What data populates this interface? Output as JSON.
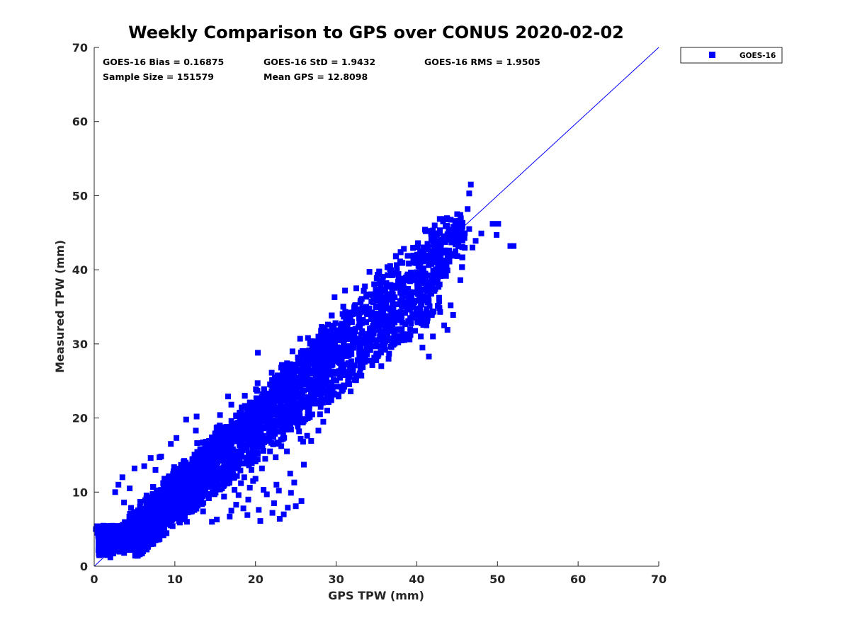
{
  "chart_data": {
    "type": "scatter",
    "title": "Weekly Comparison to GPS over CONUS 2020-02-02",
    "xlabel": "GPS TPW (mm)",
    "ylabel": "Measured TPW (mm)",
    "xlim": [
      0,
      70
    ],
    "ylim": [
      0,
      70
    ],
    "xticks": [
      "0",
      "10",
      "20",
      "30",
      "40",
      "50",
      "60",
      "70"
    ],
    "yticks": [
      "0",
      "10",
      "20",
      "30",
      "40",
      "50",
      "60",
      "70"
    ],
    "grid": false,
    "legend_position": "outside-top-right",
    "stats": {
      "bias": "GOES-16 Bias = 0.16875",
      "std": "GOES-16 StD = 1.9432",
      "rms": "GOES-16 RMS = 1.9505",
      "sample": "Sample Size = 151579",
      "mean": "Mean GPS = 12.8098"
    },
    "reference_line": {
      "from": [
        0,
        0
      ],
      "to": [
        70,
        70
      ]
    },
    "series": [
      {
        "name": "GOES-16",
        "color": "#0000ff",
        "marker": "square",
        "outliers": [
          [
            46.7,
            51.5
          ],
          [
            46.5,
            50.3
          ],
          [
            46.3,
            48.2
          ],
          [
            45.0,
            47.5
          ],
          [
            51.6,
            43.2
          ],
          [
            52.0,
            43.2
          ],
          [
            50.1,
            46.2
          ],
          [
            49.4,
            46.2
          ],
          [
            49.9,
            44.7
          ],
          [
            46.9,
            43.0
          ],
          [
            47.3,
            43.9
          ],
          [
            48.0,
            44.9
          ],
          [
            45.4,
            38.6
          ],
          [
            44.2,
            35.2
          ],
          [
            44.5,
            33.9
          ],
          [
            42.9,
            34.3
          ],
          [
            43.4,
            32.5
          ],
          [
            43.8,
            31.9
          ],
          [
            42.0,
            31.0
          ],
          [
            41.2,
            32.5
          ],
          [
            40.5,
            31.0
          ],
          [
            40.7,
            29.5
          ],
          [
            41.5,
            28.3
          ],
          [
            36.5,
            28.0
          ],
          [
            34.2,
            34.1
          ],
          [
            33.8,
            29.5
          ],
          [
            30.9,
            26.3
          ],
          [
            31.8,
            23.6
          ],
          [
            31.5,
            24.8
          ],
          [
            30.6,
            26.9
          ],
          [
            30.7,
            27.7
          ],
          [
            29.1,
            26.7
          ],
          [
            29.5,
            24.2
          ],
          [
            28.9,
            21.0
          ],
          [
            28.4,
            19.5
          ],
          [
            27.8,
            18.3
          ],
          [
            26.4,
            17.6
          ],
          [
            26.9,
            16.9
          ],
          [
            25.4,
            18.2
          ],
          [
            25.6,
            17.2
          ],
          [
            25.9,
            16.8
          ],
          [
            23.9,
            15.5
          ],
          [
            23.2,
            16.2
          ],
          [
            22.5,
            14.7
          ],
          [
            21.8,
            15.5
          ],
          [
            21.2,
            14.5
          ],
          [
            20.8,
            13.2
          ],
          [
            19.5,
            13.0
          ],
          [
            19.7,
            11.5
          ],
          [
            19.3,
            10.6
          ],
          [
            18.6,
            12.0
          ],
          [
            18.2,
            11.2
          ],
          [
            17.9,
            9.6
          ],
          [
            17.6,
            8.3
          ],
          [
            17.0,
            7.5
          ],
          [
            16.8,
            6.7
          ],
          [
            15.2,
            6.3
          ],
          [
            14.6,
            6.0
          ],
          [
            13.5,
            7.4
          ],
          [
            12.8,
            8.6
          ],
          [
            13.1,
            9.5
          ],
          [
            18.7,
            16.4
          ],
          [
            24.3,
            12.5
          ],
          [
            26.0,
            13.7
          ],
          [
            22.9,
            10.2
          ],
          [
            24.8,
            11.3
          ],
          [
            25.7,
            8.8
          ],
          [
            24.0,
            7.9
          ],
          [
            22.3,
            8.5
          ],
          [
            21.4,
            9.7
          ],
          [
            20.4,
            7.6
          ],
          [
            19.1,
            9.0
          ],
          [
            16.4,
            12.2
          ],
          [
            15.5,
            10.7
          ],
          [
            16.1,
            9.4
          ],
          [
            15.9,
            11.9
          ],
          [
            17.3,
            14.3
          ],
          [
            18.1,
            14.9
          ],
          [
            20.0,
            11.8
          ],
          [
            21.0,
            10.3
          ],
          [
            22.1,
            7.2
          ],
          [
            23.5,
            7.0
          ],
          [
            24.4,
            9.9
          ],
          [
            25.0,
            8.1
          ],
          [
            20.6,
            6.1
          ],
          [
            19.0,
            6.9
          ],
          [
            18.5,
            7.8
          ],
          [
            23.0,
            6.4
          ],
          [
            22.6,
            11.0
          ],
          [
            17.4,
            10.3
          ],
          [
            27.9,
            28.2
          ],
          [
            28.0,
            28.8
          ],
          [
            29.5,
            30.9
          ],
          [
            29.4,
            31.5
          ],
          [
            36.7,
            40.5
          ],
          [
            37.4,
            41.8
          ],
          [
            39.6,
            41.9
          ],
          [
            40.4,
            39.7
          ],
          [
            41.8,
            44.0
          ],
          [
            42.0,
            45.3
          ],
          [
            44.5,
            45.8
          ],
          [
            45.2,
            46.6
          ],
          [
            45.4,
            47.4
          ],
          [
            46.5,
            45.5
          ],
          [
            43.8,
            44.8
          ],
          [
            19.3,
            22.1
          ],
          [
            17.0,
            21.8
          ],
          [
            16.6,
            22.9
          ],
          [
            20.3,
            28.8
          ],
          [
            15.6,
            20.4
          ],
          [
            12.6,
            18.3
          ],
          [
            12.7,
            20.2
          ],
          [
            11.4,
            19.8
          ],
          [
            10.2,
            17.3
          ],
          [
            9.5,
            16.5
          ],
          [
            8.3,
            14.8
          ],
          [
            8.1,
            14.7
          ],
          [
            7.6,
            13.0
          ],
          [
            7.0,
            14.6
          ],
          [
            6.2,
            13.5
          ],
          [
            5.0,
            13.2
          ],
          [
            3.5,
            12.0
          ],
          [
            2.6,
            10.0
          ],
          [
            4.4,
            10.5
          ],
          [
            3.0,
            11.0
          ],
          [
            0.2,
            5.0
          ],
          [
            0.4,
            4.5
          ],
          [
            0.5,
            4.2
          ],
          [
            0.3,
            5.4
          ],
          [
            3.7,
            8.6
          ],
          [
            15.7,
            14.8
          ],
          [
            9.6,
            6.2
          ],
          [
            10.5,
            6.1
          ],
          [
            11.5,
            6.0
          ],
          [
            8.3,
            4.8
          ],
          [
            6.6,
            3.6
          ],
          [
            5.5,
            2.8
          ],
          [
            4.7,
            2.3
          ],
          [
            2.0,
            1.2
          ],
          [
            1.6,
            1.5
          ],
          [
            28.0,
            20.5
          ],
          [
            27.6,
            22.3
          ],
          [
            26.7,
            21.7
          ],
          [
            32.9,
            27.9
          ],
          [
            35.0,
            28.7
          ],
          [
            37.7,
            30.2
          ],
          [
            38.4,
            31.3
          ],
          [
            39.1,
            30.6
          ],
          [
            36.1,
            30.3
          ],
          [
            34.7,
            30.5
          ],
          [
            31.5,
            27.4
          ],
          [
            30.3,
            22.9
          ],
          [
            28.4,
            23.4
          ],
          [
            27.0,
            23.1
          ],
          [
            35.6,
            27.0
          ],
          [
            38.9,
            36.5
          ],
          [
            37.0,
            35.8
          ],
          [
            38.0,
            36.9
          ],
          [
            40.3,
            36.4
          ],
          [
            33.0,
            35.6
          ],
          [
            32.5,
            37.5
          ],
          [
            31.1,
            37.2
          ],
          [
            29.8,
            36.3
          ],
          [
            42.6,
            41.8
          ],
          [
            42.4,
            39.0
          ]
        ]
      }
    ]
  }
}
